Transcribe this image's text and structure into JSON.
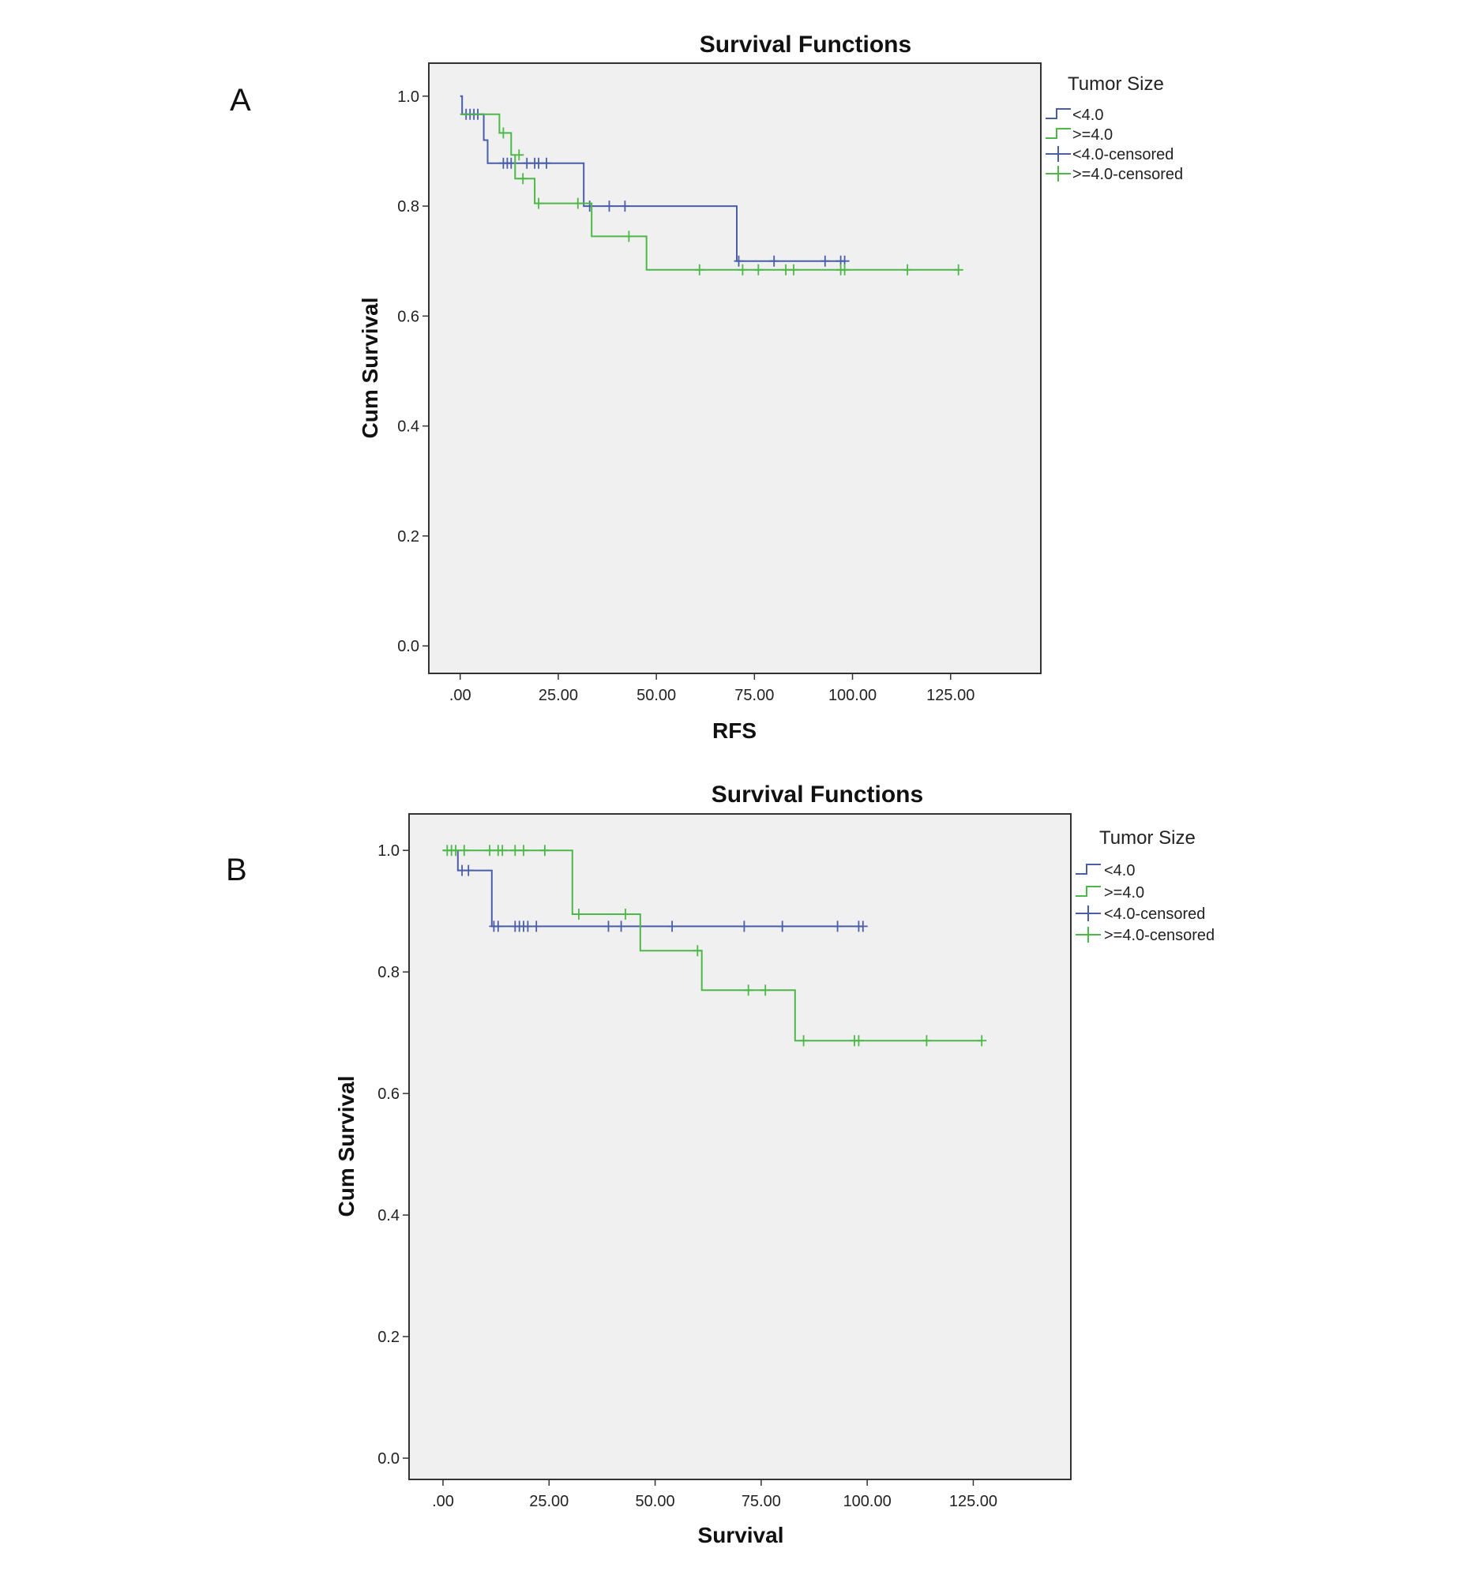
{
  "panels": [
    "A",
    "B"
  ],
  "colors": {
    "lt4": "#4a5ea8",
    "ge4": "#4cb848",
    "plot_bg": "#f0f0f0",
    "frame": "#333333"
  },
  "chart_data": [
    {
      "type": "line",
      "subtype": "kaplan-meier step",
      "title": "Survival Functions",
      "xlabel": "RFS",
      "ylabel": "Cum Survival",
      "xlim": [
        -8,
        148
      ],
      "ylim": [
        -0.05,
        1.06
      ],
      "xticks": [
        0,
        25,
        50,
        75,
        100,
        125
      ],
      "xtick_labels": [
        ".00",
        "25.00",
        "50.00",
        "75.00",
        "100.00",
        "125.00"
      ],
      "yticks": [
        0,
        0.2,
        0.4,
        0.6,
        0.8,
        1.0
      ],
      "ytick_labels": [
        "0.0",
        "0.2",
        "0.4",
        "0.6",
        "0.8",
        "1.0"
      ],
      "legend": {
        "title": "Tumor Size",
        "entries": [
          "<4.0",
          ">=4.0",
          "<4.0-censored",
          ">=4.0-censored"
        ],
        "position": "right"
      },
      "series": [
        {
          "name": "<4.0",
          "color_key": "lt4",
          "steps": [
            [
              0,
              1.0
            ],
            [
              0.5,
              0.967
            ],
            [
              6,
              0.92
            ],
            [
              7,
              0.878
            ],
            [
              31.5,
              0.8
            ],
            [
              70.5,
              0.7
            ],
            [
              98,
              0.7
            ]
          ],
          "censored": [
            [
              1.5,
              0.967
            ],
            [
              2.5,
              0.967
            ],
            [
              3.5,
              0.967
            ],
            [
              4.5,
              0.967
            ],
            [
              11,
              0.878
            ],
            [
              12,
              0.878
            ],
            [
              13,
              0.878
            ],
            [
              17,
              0.878
            ],
            [
              19,
              0.878
            ],
            [
              20,
              0.878
            ],
            [
              22,
              0.878
            ],
            [
              33,
              0.8
            ],
            [
              38,
              0.8
            ],
            [
              42,
              0.8
            ],
            [
              71,
              0.7
            ],
            [
              80,
              0.7
            ],
            [
              93,
              0.7
            ],
            [
              97,
              0.7
            ],
            [
              98,
              0.7
            ]
          ]
        },
        {
          "name": ">=4.0",
          "color_key": "ge4",
          "steps": [
            [
              0,
              0.967
            ],
            [
              8,
              0.967
            ],
            [
              10,
              0.933
            ],
            [
              13,
              0.893
            ],
            [
              14,
              0.85
            ],
            [
              19,
              0.805
            ],
            [
              33.5,
              0.745
            ],
            [
              47.5,
              0.684
            ],
            [
              127,
              0.684
            ]
          ],
          "censored": [
            [
              11,
              0.933
            ],
            [
              15,
              0.893
            ],
            [
              16,
              0.85
            ],
            [
              20,
              0.805
            ],
            [
              30,
              0.805
            ],
            [
              43,
              0.745
            ],
            [
              61,
              0.684
            ],
            [
              72,
              0.684
            ],
            [
              76,
              0.684
            ],
            [
              83,
              0.684
            ],
            [
              85,
              0.684
            ],
            [
              97,
              0.684
            ],
            [
              98,
              0.684
            ],
            [
              114,
              0.684
            ],
            [
              127,
              0.684
            ]
          ]
        }
      ]
    },
    {
      "type": "line",
      "subtype": "kaplan-meier step",
      "title": "Survival Functions",
      "xlabel": "Survival",
      "ylabel": "Cum Survival",
      "xlim": [
        -8,
        148
      ],
      "ylim": [
        -0.035,
        1.06
      ],
      "xticks": [
        0,
        25,
        50,
        75,
        100,
        125
      ],
      "xtick_labels": [
        ".00",
        "25.00",
        "50.00",
        "75.00",
        "100.00",
        "125.00"
      ],
      "yticks": [
        0,
        0.2,
        0.4,
        0.6,
        0.8,
        1.0
      ],
      "ytick_labels": [
        "0.0",
        "0.2",
        "0.4",
        "0.6",
        "0.8",
        "1.0"
      ],
      "legend": {
        "title": "Tumor Size",
        "entries": [
          "<4.0",
          ">=4.0",
          "<4.0-censored",
          ">=4.0-censored"
        ],
        "position": "right"
      },
      "series": [
        {
          "name": "<4.0",
          "color_key": "lt4",
          "steps": [
            [
              3,
              1.0
            ],
            [
              3.5,
              0.967
            ],
            [
              11.5,
              0.875
            ],
            [
              99,
              0.875
            ]
          ],
          "censored": [
            [
              4.5,
              0.967
            ],
            [
              6,
              0.967
            ],
            [
              12,
              0.875
            ],
            [
              13,
              0.875
            ],
            [
              17,
              0.875
            ],
            [
              18,
              0.875
            ],
            [
              19,
              0.875
            ],
            [
              20,
              0.875
            ],
            [
              22,
              0.875
            ],
            [
              39,
              0.875
            ],
            [
              42,
              0.875
            ],
            [
              54,
              0.875
            ],
            [
              71,
              0.875
            ],
            [
              80,
              0.875
            ],
            [
              93,
              0.875
            ],
            [
              98,
              0.875
            ],
            [
              99,
              0.875
            ]
          ]
        },
        {
          "name": ">=4.0",
          "color_key": "ge4",
          "steps": [
            [
              0,
              1.0
            ],
            [
              30,
              1.0
            ],
            [
              30.5,
              0.895
            ],
            [
              46.5,
              0.835
            ],
            [
              61,
              0.77
            ],
            [
              83,
              0.687
            ],
            [
              127,
              0.687
            ]
          ],
          "censored": [
            [
              1,
              1.0
            ],
            [
              2,
              1.0
            ],
            [
              3,
              1.0
            ],
            [
              5,
              1.0
            ],
            [
              11,
              1.0
            ],
            [
              13,
              1.0
            ],
            [
              14,
              1.0
            ],
            [
              17,
              1.0
            ],
            [
              19,
              1.0
            ],
            [
              24,
              1.0
            ],
            [
              32,
              0.895
            ],
            [
              43,
              0.895
            ],
            [
              60,
              0.835
            ],
            [
              72,
              0.77
            ],
            [
              76,
              0.77
            ],
            [
              85,
              0.687
            ],
            [
              97,
              0.687
            ],
            [
              98,
              0.687
            ],
            [
              114,
              0.687
            ],
            [
              127,
              0.687
            ]
          ]
        }
      ]
    }
  ]
}
